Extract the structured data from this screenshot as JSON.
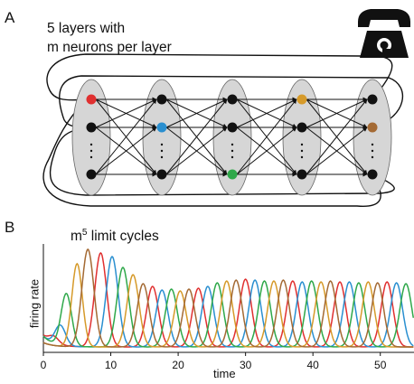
{
  "panel_a": {
    "letter": "A",
    "title_line1": "5 layers with",
    "title_line2": "m neurons per layer",
    "icon": "telephone-icon",
    "colors": {
      "node_default": "#111111",
      "layer_fill": "#d6d6d6",
      "red": "#e03030",
      "blue": "#2a8fd0",
      "green": "#2fa84a",
      "orange": "#d69a2a",
      "brown": "#a46a34"
    }
  },
  "panel_b": {
    "letter": "B",
    "title_main": "m",
    "title_sup": "5",
    "title_rest": " limit cycles"
  },
  "chart_data": {
    "type": "line",
    "xlabel": "time",
    "ylabel": "firing rate",
    "xlim": [
      0,
      55
    ],
    "xticks": [
      "0",
      "10",
      "20",
      "30",
      "40",
      "50"
    ],
    "series_colors": [
      "#e03030",
      "#2a8fd0",
      "#2fa84a",
      "#d69a2a",
      "#a46a34"
    ],
    "grid": false
  }
}
